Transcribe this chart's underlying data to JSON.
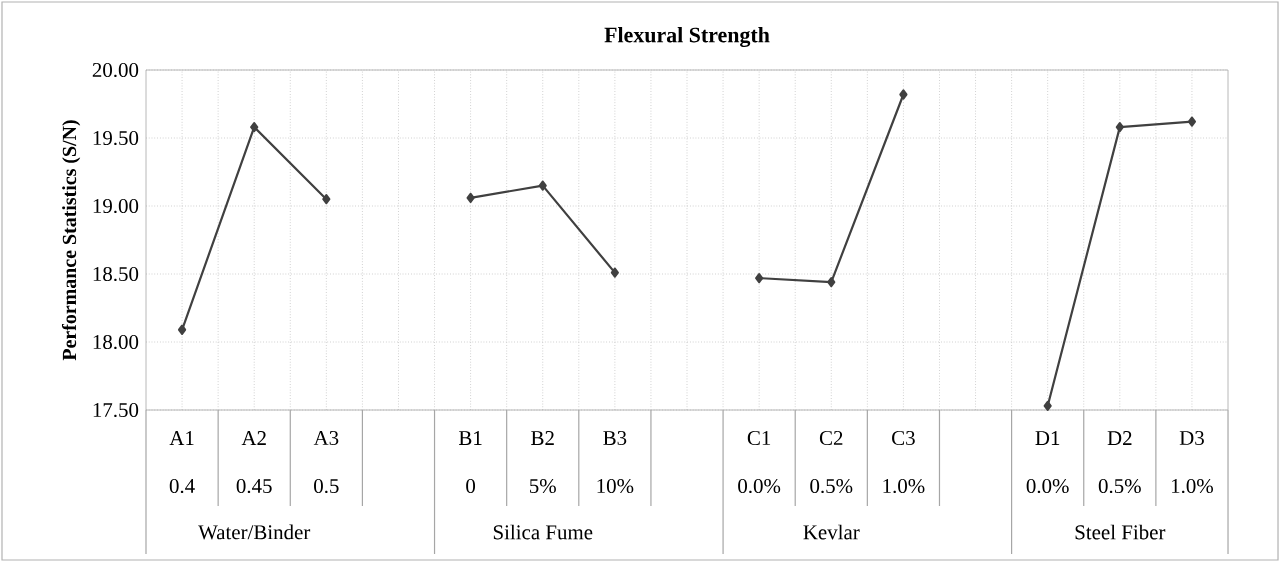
{
  "chart_data": {
    "type": "line",
    "title": "Flexural Strength",
    "ylabel": "Performance Statistics (S/N)",
    "categories": [
      "A1",
      "A2",
      "A3",
      null,
      "B1",
      "B2",
      "B3",
      null,
      "C1",
      "C2",
      "C3",
      null,
      "D1",
      "D2",
      "D3"
    ],
    "series": [
      {
        "color": "#404040",
        "values": [
          18.09,
          19.58,
          19.05,
          null,
          19.06,
          19.15,
          18.51,
          null,
          18.47,
          18.44,
          19.82,
          null,
          17.53,
          19.58,
          19.62
        ]
      }
    ],
    "annotations": [
      "0.4",
      "0.45",
      "0.5",
      "0",
      "5%",
      "10%",
      "0.0%",
      "0.5%",
      "1.0%",
      "0.0%",
      "0.5%",
      "1.0%",
      "Water/Binder",
      "Silica Fume",
      "Kevlar",
      "Steel Fiber"
    ],
    "ylim": [
      17.5,
      20
    ],
    "yticks": [
      {
        "value": 17.5,
        "label": "17.50"
      },
      {
        "value": 18,
        "label": "18.00"
      },
      {
        "value": 18.5,
        "label": "18.50"
      },
      {
        "value": 19,
        "label": "19.00"
      },
      {
        "value": 19.5,
        "label": "19.50"
      },
      {
        "value": 20,
        "label": "20.00"
      }
    ],
    "grid": true,
    "marker": "diamond",
    "line_style": "solid"
  }
}
